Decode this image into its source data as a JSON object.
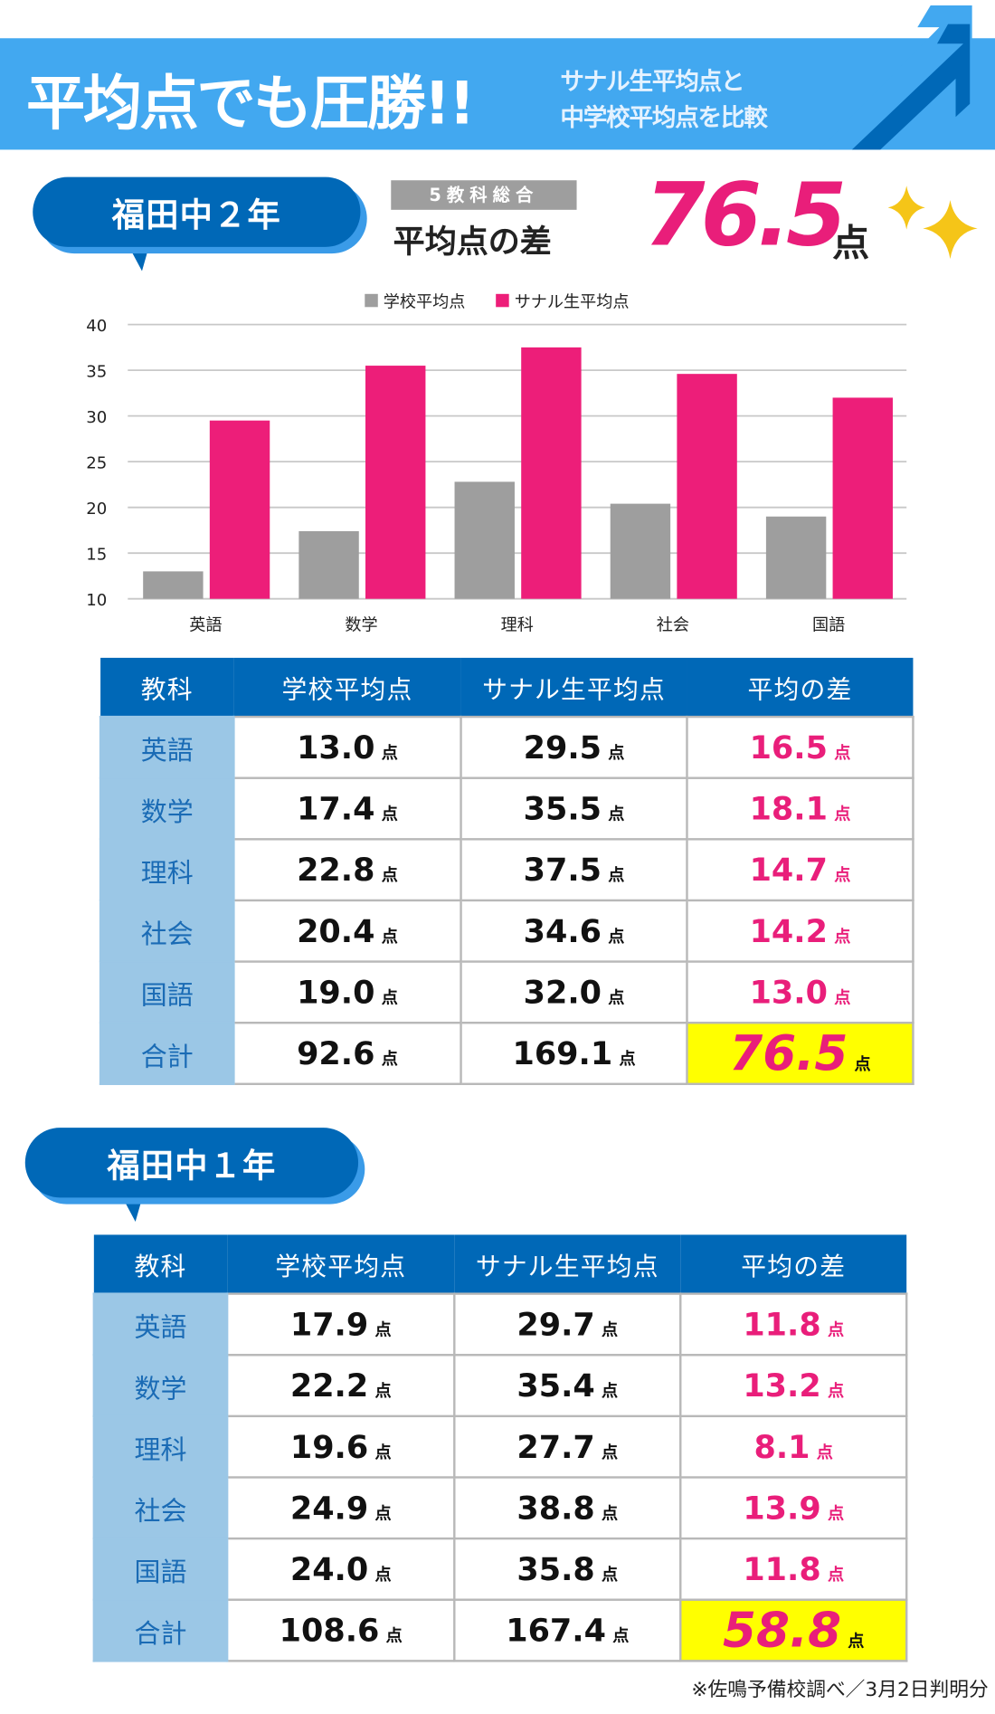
{
  "header": {
    "title": "平均点でも圧勝!!",
    "subtitle_line1": "サナル生平均点と",
    "subtitle_line2": "中学校平均点を比較"
  },
  "grade2": {
    "label": "福田中２年",
    "badge": "5教科総合",
    "diff_label": "平均点の差",
    "diff_value": "76.5",
    "unit": "点"
  },
  "chart_data": {
    "type": "bar",
    "categories": [
      "英語",
      "数学",
      "理科",
      "社会",
      "国語"
    ],
    "series": [
      {
        "name": "学校平均点",
        "color": "#9e9e9e",
        "values": [
          13.0,
          17.4,
          22.8,
          20.4,
          19.0
        ]
      },
      {
        "name": "サナル生平均点",
        "color": "#ed1e79",
        "values": [
          29.5,
          35.5,
          37.5,
          34.6,
          32.0
        ]
      }
    ],
    "ylim": [
      10,
      40
    ],
    "yticks": [
      "40",
      "35",
      "30",
      "25",
      "20",
      "15",
      "10"
    ],
    "grid": true,
    "legend": "top"
  },
  "table_headers": [
    "教科",
    "学校平均点",
    "サナル生平均点",
    "平均の差"
  ],
  "unit": "点",
  "table2": {
    "rows": [
      [
        "英語",
        "13.0",
        "29.5",
        "16.5"
      ],
      [
        "数学",
        "17.4",
        "35.5",
        "18.1"
      ],
      [
        "理科",
        "22.8",
        "37.5",
        "14.7"
      ],
      [
        "社会",
        "20.4",
        "34.6",
        "14.2"
      ],
      [
        "国語",
        "19.0",
        "32.0",
        "13.0"
      ],
      [
        "合計",
        "92.6",
        "169.1",
        "76.5"
      ]
    ]
  },
  "grade1": {
    "label": "福田中１年"
  },
  "table1": {
    "rows": [
      [
        "英語",
        "17.9",
        "29.7",
        "11.8"
      ],
      [
        "数学",
        "22.2",
        "35.4",
        "13.2"
      ],
      [
        "理科",
        "19.6",
        "27.7",
        "8.1"
      ],
      [
        "社会",
        "24.9",
        "38.8",
        "13.9"
      ],
      [
        "国語",
        "24.0",
        "35.8",
        "11.8"
      ],
      [
        "合計",
        "108.6",
        "167.4",
        "58.8"
      ]
    ]
  },
  "footnote": "※佐鳴予備校調べ／3月2日判明分"
}
